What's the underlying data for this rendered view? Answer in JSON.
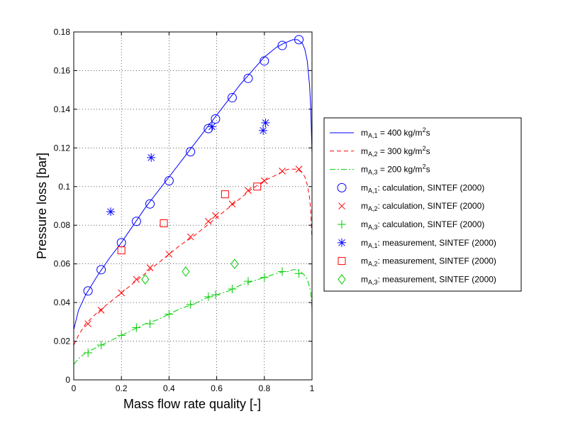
{
  "chart_data": {
    "type": "line",
    "title": "",
    "xlabel": "Mass flow rate quality [-]",
    "ylabel": "Pressure loss [bar]",
    "xlim": [
      0,
      1
    ],
    "ylim": [
      0,
      0.18
    ],
    "x_ticks": [
      "0",
      "0.2",
      "0.4",
      "0.6",
      "0.8",
      "1"
    ],
    "x_tick_values": [
      0,
      0.2,
      0.4,
      0.6,
      0.8,
      1
    ],
    "y_ticks": [
      "0",
      "0.02",
      "0.04",
      "0.06",
      "0.08",
      "0.1",
      "0.12",
      "0.14",
      "0.16",
      "0.18"
    ],
    "y_tick_values": [
      0,
      0.02,
      0.04,
      0.06,
      0.08,
      0.1,
      0.12,
      0.14,
      0.16,
      0.18
    ],
    "grid": true,
    "legend_position": "outside-right",
    "series": [
      {
        "name": "m_{A,1} = 400 kg/m^2s",
        "style": "line-solid",
        "color": "#0000FF",
        "x": [
          0,
          0.02,
          0.05,
          0.1,
          0.15,
          0.2,
          0.25,
          0.3,
          0.35,
          0.4,
          0.45,
          0.5,
          0.55,
          0.6,
          0.65,
          0.7,
          0.75,
          0.8,
          0.85,
          0.88,
          0.9,
          0.92,
          0.94,
          0.96,
          0.97,
          0.98,
          0.99,
          0.995,
          1.0
        ],
        "y": [
          0.026,
          0.036,
          0.044,
          0.054,
          0.063,
          0.071,
          0.08,
          0.089,
          0.097,
          0.105,
          0.113,
          0.121,
          0.129,
          0.137,
          0.145,
          0.153,
          0.16,
          0.167,
          0.172,
          0.174,
          0.175,
          0.176,
          0.176,
          0.174,
          0.171,
          0.165,
          0.152,
          0.14,
          0.117
        ]
      },
      {
        "name": "m_{A,2} = 300 kg/m^2s",
        "style": "line-dashed",
        "color": "#FF0000",
        "x": [
          0,
          0.02,
          0.05,
          0.1,
          0.15,
          0.2,
          0.25,
          0.3,
          0.35,
          0.4,
          0.45,
          0.5,
          0.55,
          0.6,
          0.65,
          0.7,
          0.75,
          0.8,
          0.85,
          0.88,
          0.9,
          0.92,
          0.94,
          0.96,
          0.97,
          0.98,
          0.99,
          0.995,
          1.0
        ],
        "y": [
          0.018,
          0.023,
          0.029,
          0.035,
          0.04,
          0.045,
          0.05,
          0.055,
          0.06,
          0.065,
          0.07,
          0.074,
          0.079,
          0.084,
          0.089,
          0.094,
          0.099,
          0.103,
          0.106,
          0.108,
          0.109,
          0.109,
          0.109,
          0.107,
          0.105,
          0.101,
          0.094,
          0.087,
          0.072
        ]
      },
      {
        "name": "m_{A,3} = 200 kg/m^2s",
        "style": "line-dashdot",
        "color": "#00CC00",
        "x": [
          0,
          0.02,
          0.05,
          0.1,
          0.15,
          0.2,
          0.25,
          0.3,
          0.35,
          0.4,
          0.45,
          0.5,
          0.55,
          0.6,
          0.65,
          0.7,
          0.75,
          0.8,
          0.85,
          0.88,
          0.9,
          0.92,
          0.94,
          0.96,
          0.97,
          0.98,
          0.99,
          0.995,
          1.0
        ],
        "y": [
          0.008,
          0.011,
          0.014,
          0.017,
          0.02,
          0.023,
          0.026,
          0.029,
          0.031,
          0.034,
          0.037,
          0.039,
          0.042,
          0.044,
          0.046,
          0.049,
          0.051,
          0.053,
          0.055,
          0.056,
          0.056,
          0.057,
          0.057,
          0.055,
          0.054,
          0.052,
          0.048,
          0.045,
          0.037
        ]
      },
      {
        "name": "m_{A,1}: calculation, SINTEF (2000)",
        "style": "marker-circle",
        "color": "#0000FF",
        "x": [
          0.06,
          0.115,
          0.2,
          0.263,
          0.32,
          0.4,
          0.49,
          0.565,
          0.595,
          0.665,
          0.732,
          0.8,
          0.875,
          0.945
        ],
        "y": [
          0.046,
          0.057,
          0.071,
          0.082,
          0.091,
          0.103,
          0.118,
          0.13,
          0.135,
          0.146,
          0.156,
          0.165,
          0.173,
          0.176
        ]
      },
      {
        "name": "m_{A,2}: calculation, SINTEF (2000)",
        "style": "marker-x",
        "color": "#FF0000",
        "x": [
          0.06,
          0.115,
          0.2,
          0.263,
          0.32,
          0.4,
          0.49,
          0.565,
          0.595,
          0.665,
          0.732,
          0.8,
          0.875,
          0.945
        ],
        "y": [
          0.029,
          0.036,
          0.045,
          0.052,
          0.058,
          0.065,
          0.074,
          0.082,
          0.085,
          0.091,
          0.098,
          0.103,
          0.108,
          0.109
        ]
      },
      {
        "name": "m_{A,3}: calculation, SINTEF (2000)",
        "style": "marker-plus",
        "color": "#00CC00",
        "x": [
          0.06,
          0.115,
          0.2,
          0.263,
          0.32,
          0.4,
          0.49,
          0.565,
          0.595,
          0.665,
          0.732,
          0.8,
          0.875,
          0.945
        ],
        "y": [
          0.014,
          0.018,
          0.023,
          0.027,
          0.029,
          0.034,
          0.039,
          0.043,
          0.044,
          0.047,
          0.051,
          0.053,
          0.056,
          0.055
        ]
      },
      {
        "name": "m_{A,1}: measurement, SINTEF (2000)",
        "style": "marker-asterisk",
        "color": "#0000FF",
        "x": [
          0.155,
          0.325,
          0.58,
          0.795,
          0.805
        ],
        "y": [
          0.087,
          0.115,
          0.131,
          0.129,
          0.133
        ]
      },
      {
        "name": "m_{A,2}: measurement, SINTEF (2000)",
        "style": "marker-square",
        "color": "#FF0000",
        "x": [
          0.2,
          0.378,
          0.635,
          0.77
        ],
        "y": [
          0.067,
          0.081,
          0.096,
          0.1
        ]
      },
      {
        "name": "m_{A,3}: measurement, SINTEF (2000)",
        "style": "marker-diamond",
        "color": "#00CC00",
        "x": [
          0.3,
          0.47,
          0.675
        ],
        "y": [
          0.052,
          0.056,
          0.06
        ]
      }
    ],
    "legend": [
      {
        "main": "m",
        "sub": "A,1",
        "rest": " = 400 kg/m",
        "sup": "2",
        "tail": "s"
      },
      {
        "main": "m",
        "sub": "A,2",
        "rest": " = 300 kg/m",
        "sup": "2",
        "tail": "s"
      },
      {
        "main": "m",
        "sub": "A,3",
        "rest": " = 200 kg/m",
        "sup": "2",
        "tail": "s"
      },
      {
        "main": "m",
        "sub": "A,1",
        "rest": ": calculation, SINTEF (2000)",
        "sup": "",
        "tail": ""
      },
      {
        "main": "m",
        "sub": "A,2",
        "rest": ": calculation, SINTEF (2000)",
        "sup": "",
        "tail": ""
      },
      {
        "main": "m",
        "sub": "A,3",
        "rest": ": calculation, SINTEF (2000)",
        "sup": "",
        "tail": ""
      },
      {
        "main": "m",
        "sub": "A,1",
        "rest": ": measurement, SINTEF (2000)",
        "sup": "",
        "tail": ""
      },
      {
        "main": "m",
        "sub": "A,2",
        "rest": ": measurement, SINTEF (2000)",
        "sup": "",
        "tail": ""
      },
      {
        "main": "m",
        "sub": "A,3",
        "rest": ": measurement, SINTEF (2000)",
        "sup": "",
        "tail": ""
      }
    ]
  }
}
